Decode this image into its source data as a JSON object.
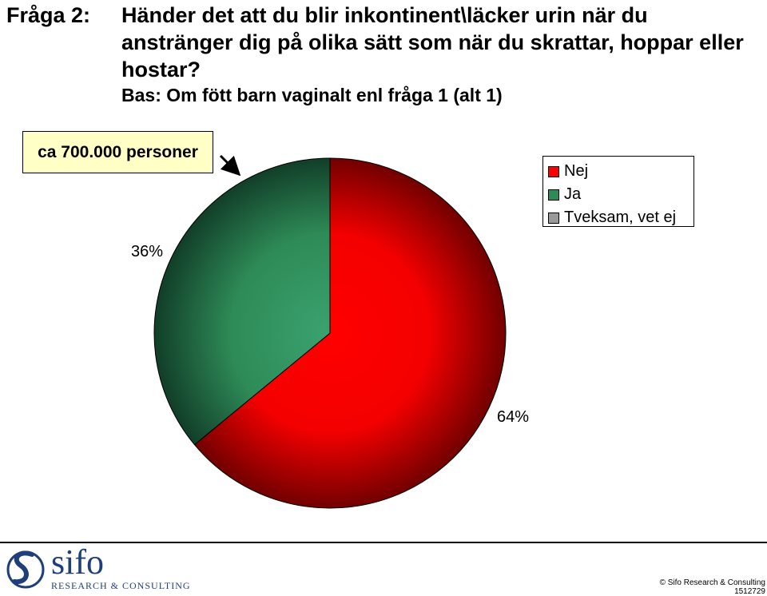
{
  "header": {
    "question_label": "Fråga 2:",
    "question_text": "Händer det att du blir inkontinent\\läcker urin när du anstränger dig på olika sätt som när du skrattar, hoppar eller hostar?",
    "base_text": "Bas: Om fött barn vaginalt enl fråga 1 (alt 1)"
  },
  "callout": {
    "text": "ca 700.000 personer"
  },
  "chart_data": {
    "type": "pie",
    "title": "Händer det att du blir inkontinent\\läcker urin när du anstränger dig på olika sätt som när du skrattar, hoppar eller hostar?",
    "slices": [
      {
        "name": "Nej",
        "value": 64,
        "label": "64%",
        "color": "#e00000"
      },
      {
        "name": "Ja",
        "value": 36,
        "label": "36%",
        "color": "#2e8b57"
      },
      {
        "name": "Tveksam, vet ej",
        "value": 0,
        "label": "",
        "color": "#999999"
      }
    ],
    "legend_position": "top-right"
  },
  "legend": {
    "items": [
      {
        "label": "Nej",
        "color": "#ff0000"
      },
      {
        "label": "Ja",
        "color": "#2e8b57"
      },
      {
        "label": "Tveksam, vet ej",
        "color": "#999999"
      }
    ]
  },
  "footer": {
    "logo_word": "sifo",
    "logo_sub": "RESEARCH & CONSULTING",
    "copyright": "© Sifo Research & Consulting",
    "code": "1512729"
  }
}
